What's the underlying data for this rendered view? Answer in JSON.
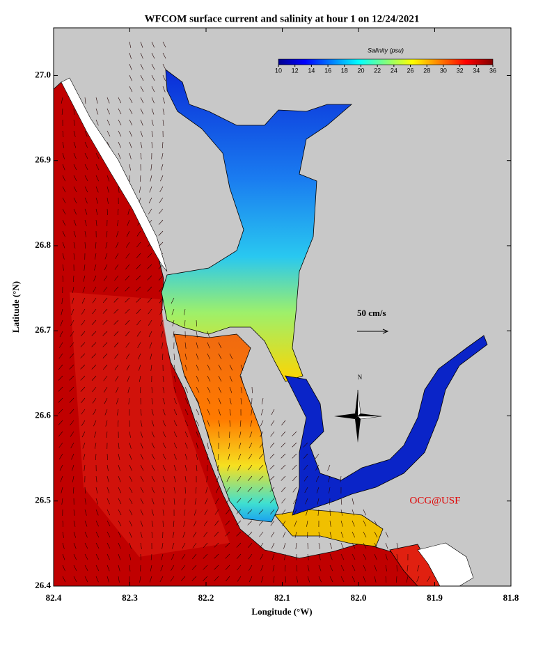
{
  "chart_data": {
    "type": "map",
    "title": "WFCOM surface current and salinity at hour 1 on 12/24/2021",
    "x_label": "Longitude (°W)",
    "y_label": "Latitude (°N)",
    "xlim": [
      82.4,
      81.8
    ],
    "ylim": [
      26.4,
      27.056
    ],
    "xticks": [
      82.4,
      82.3,
      82.2,
      82.1,
      {
        "value": 82.0,
        "label": "82.0"
      },
      81.9,
      81.8
    ],
    "yticks": [
      {
        "value": 26.4,
        "label": "26.4"
      },
      26.5,
      26.6,
      26.7,
      26.8,
      26.9,
      {
        "value": 27.0,
        "label": "27.0"
      }
    ],
    "colorbar": {
      "label": "Salinity (psu)",
      "lim": [
        10,
        36
      ],
      "ticks": [
        10,
        12,
        14,
        16,
        18,
        20,
        22,
        24,
        26,
        28,
        30,
        32,
        34,
        36
      ]
    },
    "scale_label": "50 cm/s",
    "compass_label": "N",
    "credit": "OCG@USF"
  }
}
